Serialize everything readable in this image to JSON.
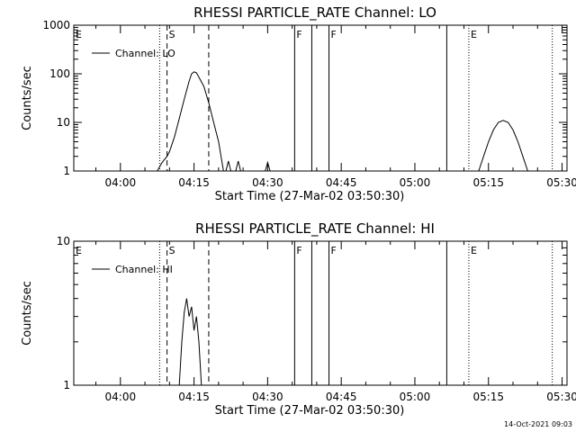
{
  "footer_stamp": "14-Oct-2021 09:03",
  "chart_data": [
    {
      "type": "line",
      "title": "RHESSI PARTICLE_RATE Channel: LO",
      "xlabel": "Start Time (27-Mar-02 03:50:30)",
      "ylabel": "Counts/sec",
      "yscale": "log",
      "ylim": [
        1,
        1000
      ],
      "y_ticks": [
        {
          "value": 1,
          "label": "1"
        },
        {
          "value": 10,
          "label": "10"
        },
        {
          "value": 100,
          "label": "100"
        },
        {
          "value": 1000,
          "label": "1000"
        }
      ],
      "xlim": [
        "03:50:30",
        "05:31:00"
      ],
      "x_ticks": [
        "04:00",
        "04:15",
        "04:30",
        "04:45",
        "05:00",
        "05:15",
        "05:30"
      ],
      "legend": {
        "entry": "Channel: LO",
        "placement": "top-left"
      },
      "markers": [
        {
          "label": "E",
          "time": "03:50:30",
          "style": "dotted"
        },
        {
          "label": "",
          "time": "04:08:00",
          "style": "dotted"
        },
        {
          "label": "S",
          "time": "04:09:30",
          "style": "dashed"
        },
        {
          "label": "",
          "time": "04:18:00",
          "style": "dashed"
        },
        {
          "label": "F",
          "time": "04:35:30",
          "style": "solid"
        },
        {
          "label": "",
          "time": "04:39:00",
          "style": "solid"
        },
        {
          "label": "F",
          "time": "04:42:30",
          "style": "solid"
        },
        {
          "label": "",
          "time": "05:06:30",
          "style": "solid"
        },
        {
          "label": "E",
          "time": "05:11:00",
          "style": "dotted"
        },
        {
          "label": "",
          "time": "05:28:00",
          "style": "dotted"
        }
      ],
      "series": [
        {
          "name": "Channel: LO",
          "segments": [
            [
              [
                "04:07:30",
                1
              ],
              [
                "04:08:30",
                1.5
              ],
              [
                "04:09:30",
                2
              ],
              [
                "04:10:00",
                2.5
              ],
              [
                "04:11:00",
                5
              ],
              [
                "04:12:00",
                12
              ],
              [
                "04:13:00",
                30
              ],
              [
                "04:14:00",
                70
              ],
              [
                "04:14:30",
                100
              ],
              [
                "04:15:00",
                110
              ],
              [
                "04:15:30",
                105
              ],
              [
                "04:16:00",
                85
              ],
              [
                "04:17:00",
                55
              ],
              [
                "04:18:00",
                25
              ],
              [
                "04:19:00",
                10
              ],
              [
                "04:20:00",
                4
              ],
              [
                "04:20:30",
                2
              ],
              [
                "04:21:00",
                1
              ]
            ],
            [
              [
                "04:21:30",
                1
              ],
              [
                "04:22:00",
                1.6
              ],
              [
                "04:22:30",
                1
              ]
            ],
            [
              [
                "04:23:30",
                1
              ],
              [
                "04:24:00",
                1.6
              ],
              [
                "04:24:30",
                1
              ]
            ],
            [
              [
                "04:29:30",
                1
              ],
              [
                "04:30:00",
                1.5
              ],
              [
                "04:30:30",
                1
              ]
            ],
            [
              [
                "05:13:00",
                1
              ],
              [
                "05:14:00",
                2
              ],
              [
                "05:15:00",
                4
              ],
              [
                "05:16:00",
                7
              ],
              [
                "05:17:00",
                10
              ],
              [
                "05:18:00",
                11
              ],
              [
                "05:19:00",
                10
              ],
              [
                "05:20:00",
                7
              ],
              [
                "05:21:00",
                4
              ],
              [
                "05:22:00",
                2
              ],
              [
                "05:23:00",
                1
              ]
            ]
          ]
        }
      ]
    },
    {
      "type": "line",
      "title": "RHESSI PARTICLE_RATE Channel: HI",
      "xlabel": "Start Time (27-Mar-02 03:50:30)",
      "ylabel": "Counts/sec",
      "yscale": "log",
      "ylim": [
        1,
        10
      ],
      "y_ticks": [
        {
          "value": 1,
          "label": "1"
        },
        {
          "value": 10,
          "label": "10"
        }
      ],
      "xlim": [
        "03:50:30",
        "05:31:00"
      ],
      "x_ticks": [
        "04:00",
        "04:15",
        "04:30",
        "04:45",
        "05:00",
        "05:15",
        "05:30"
      ],
      "legend": {
        "entry": "Channel: HI",
        "placement": "top-left"
      },
      "markers": [
        {
          "label": "E",
          "time": "03:50:30",
          "style": "dotted"
        },
        {
          "label": "",
          "time": "04:08:00",
          "style": "dotted"
        },
        {
          "label": "S",
          "time": "04:09:30",
          "style": "dashed"
        },
        {
          "label": "",
          "time": "04:18:00",
          "style": "dashed"
        },
        {
          "label": "F",
          "time": "04:35:30",
          "style": "solid"
        },
        {
          "label": "",
          "time": "04:39:00",
          "style": "solid"
        },
        {
          "label": "F",
          "time": "04:42:30",
          "style": "solid"
        },
        {
          "label": "",
          "time": "05:06:30",
          "style": "solid"
        },
        {
          "label": "E",
          "time": "05:11:00",
          "style": "dotted"
        },
        {
          "label": "",
          "time": "05:28:00",
          "style": "dotted"
        }
      ],
      "series": [
        {
          "name": "Channel: HI",
          "segments": [
            [
              [
                "04:12:00",
                1
              ],
              [
                "04:12:30",
                2
              ],
              [
                "04:13:00",
                3.2
              ],
              [
                "04:13:30",
                4
              ],
              [
                "04:14:00",
                3
              ],
              [
                "04:14:30",
                3.5
              ],
              [
                "04:15:00",
                2.4
              ],
              [
                "04:15:30",
                3
              ],
              [
                "04:16:00",
                2
              ],
              [
                "04:16:30",
                1
              ]
            ]
          ]
        }
      ]
    }
  ]
}
